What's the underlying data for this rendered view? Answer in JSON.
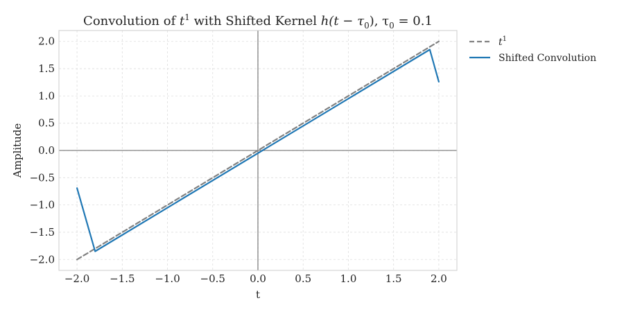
{
  "chart_data": {
    "type": "line",
    "title_main": "Convolution of",
    "title_var1": "t",
    "title_sup1": "1",
    "title_mid": " with Shifted Kernel ",
    "title_var2": "h(t − τ",
    "title_sub1": "0",
    "title_mid2": "),  τ",
    "title_sub2": "0",
    "title_end": " = 0.1",
    "xlabel": "t",
    "ylabel": "Amplitude",
    "xlim": [
      -2.2,
      2.2
    ],
    "ylim": [
      -2.2,
      2.2
    ],
    "xticks": [
      -2.0,
      -1.5,
      -1.0,
      -0.5,
      0.0,
      0.5,
      1.0,
      1.5,
      2.0
    ],
    "xtick_labels": [
      "−2.0",
      "−1.5",
      "−1.0",
      "−0.5",
      "0.0",
      "0.5",
      "1.0",
      "1.5",
      "2.0"
    ],
    "yticks": [
      2.0,
      1.5,
      1.0,
      0.5,
      0.0,
      -0.5,
      -1.0,
      -1.5,
      -2.0
    ],
    "ytick_labels": [
      "2.0",
      "1.5",
      "1.0",
      "0.5",
      "0.0",
      "−0.5",
      "−1.0",
      "−1.5",
      "−2.0"
    ],
    "grid": true,
    "legend_position": "outside-right",
    "series": [
      {
        "name": "t",
        "name_sup": "1",
        "color": "#808080",
        "style": "dashed",
        "x": [
          -2.0,
          2.0
        ],
        "y": [
          -2.0,
          2.0
        ]
      },
      {
        "name": "Shifted Convolution",
        "color": "#1f77b4",
        "style": "solid",
        "x": [
          -2.0,
          -1.8,
          1.9,
          2.0
        ],
        "y": [
          -0.69,
          -1.85,
          1.85,
          1.26
        ]
      }
    ]
  }
}
